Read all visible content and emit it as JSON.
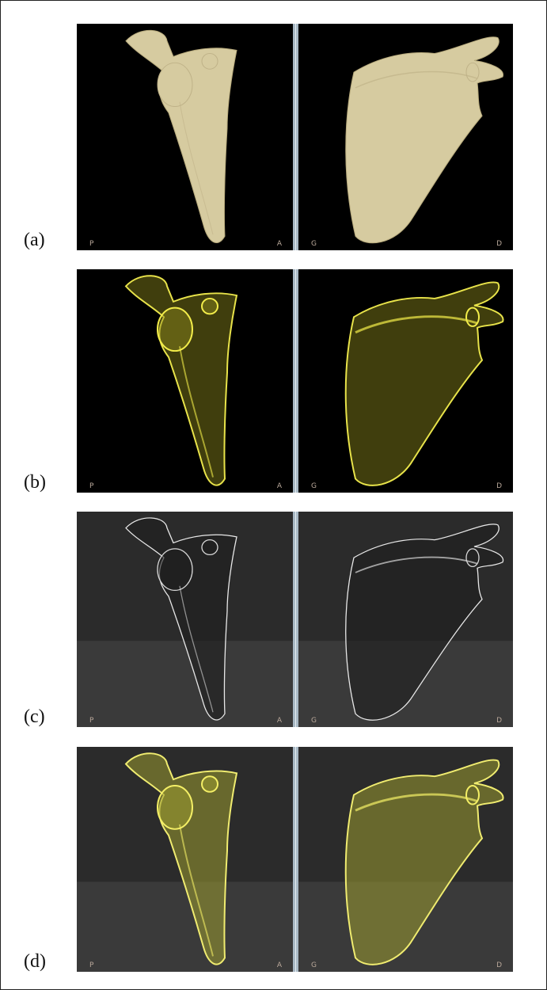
{
  "rows": [
    {
      "label": "(a)",
      "left": {
        "corner_left": "P",
        "corner_right": "A"
      },
      "right": {
        "corner_left": "G",
        "corner_right": "D"
      }
    },
    {
      "label": "(b)",
      "left": {
        "corner_left": "P",
        "corner_right": "A"
      },
      "right": {
        "corner_left": "G",
        "corner_right": "D"
      }
    },
    {
      "label": "(c)",
      "left": {
        "corner_left": "P",
        "corner_right": "A"
      },
      "right": {
        "corner_left": "G",
        "corner_right": "D"
      }
    },
    {
      "label": "(d)",
      "left": {
        "corner_left": "P",
        "corner_right": "A"
      },
      "right": {
        "corner_left": "G",
        "corner_right": "D"
      }
    }
  ]
}
